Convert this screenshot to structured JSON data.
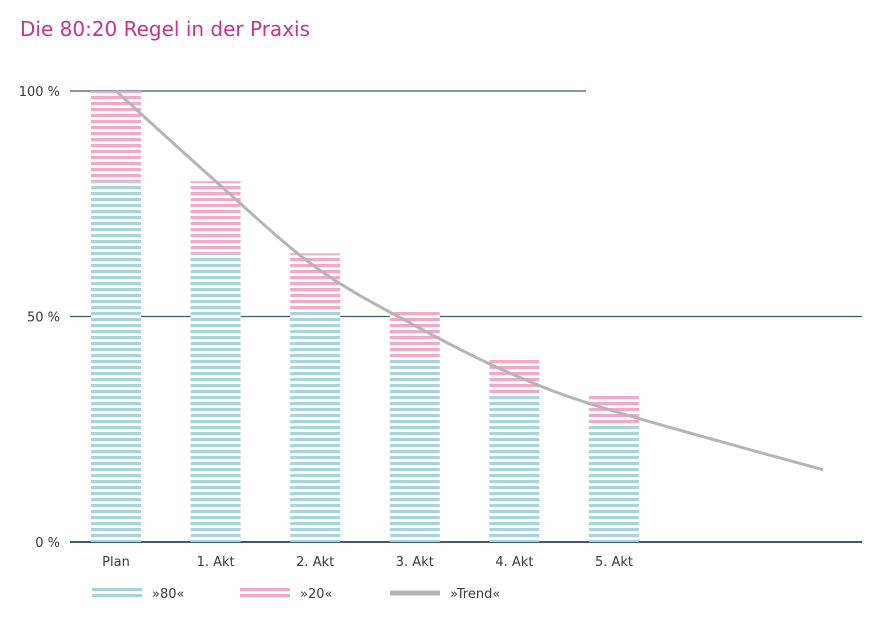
{
  "chart_data": {
    "type": "bar",
    "title": "Die 80:20 Regel in der Praxis",
    "categories": [
      "Plan",
      "1. Akt",
      "2. Akt",
      "3. Akt",
      "4. Akt",
      "5. Akt"
    ],
    "series": [
      {
        "name": "»80«",
        "values": [
          80,
          64,
          51,
          41,
          33,
          26
        ],
        "color": "#a9d4db"
      },
      {
        "name": "»20«",
        "values": [
          20,
          16,
          13,
          10,
          8,
          7
        ],
        "color": "#f2a9c8"
      }
    ],
    "stacked": true,
    "trend": {
      "name": "»Trend«",
      "color": "#b5b5b5",
      "points": [
        [
          0,
          100
        ],
        [
          1,
          80
        ],
        [
          2,
          61
        ],
        [
          3,
          48
        ],
        [
          4,
          37
        ],
        [
          5,
          29
        ],
        [
          7.1,
          16
        ]
      ]
    },
    "yticks": [
      {
        "value": 100,
        "label": "100 %"
      },
      {
        "value": 50,
        "label": "50 %"
      },
      {
        "value": 0,
        "label": "0 %"
      }
    ],
    "ylim": [
      0,
      100
    ],
    "grid": true,
    "legend_position": "bottom",
    "colors": {
      "title": "#c8338d",
      "axis": "#3d5a73",
      "text": "#3a3a3a"
    }
  }
}
